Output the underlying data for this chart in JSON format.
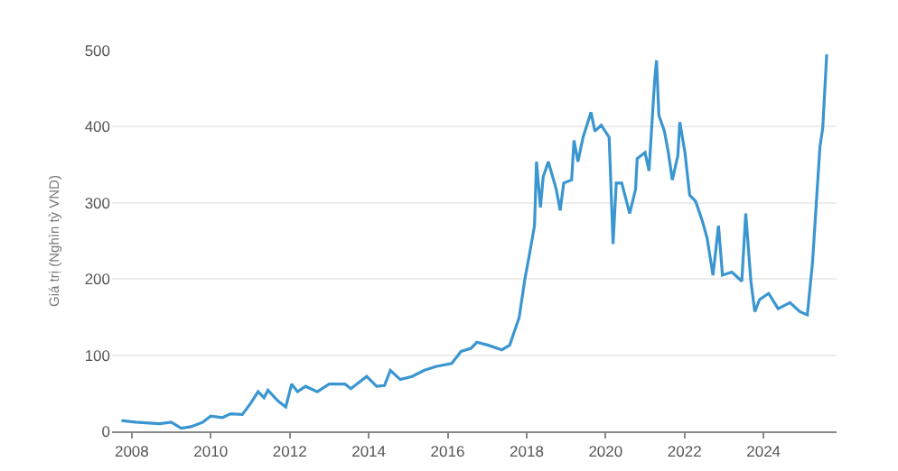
{
  "chart_data": {
    "type": "line",
    "ylabel": "Giá trị (Nghìn tỷ VND)",
    "xlim": [
      2007.5,
      2025.85
    ],
    "ylim": [
      0,
      500
    ],
    "xticks": [
      2008,
      2010,
      2012,
      2014,
      2016,
      2018,
      2020,
      2022,
      2024
    ],
    "yticks": [
      0,
      100,
      200,
      300,
      400,
      500
    ],
    "grid": "y",
    "series": [
      {
        "color": "#3a96d0",
        "x": [
          2007.74,
          2008.1,
          2008.7,
          2009.0,
          2009.25,
          2009.5,
          2009.8,
          2010.0,
          2010.3,
          2010.5,
          2010.8,
          2011.0,
          2011.2,
          2011.35,
          2011.45,
          2011.7,
          2011.9,
          2012.05,
          2012.2,
          2012.4,
          2012.7,
          2013.0,
          2013.4,
          2013.55,
          2013.95,
          2014.2,
          2014.4,
          2014.55,
          2014.8,
          2015.1,
          2015.4,
          2015.7,
          2016.1,
          2016.34,
          2016.59,
          2016.74,
          2017.03,
          2017.37,
          2017.57,
          2017.81,
          2017.96,
          2018.06,
          2018.2,
          2018.25,
          2018.35,
          2018.42,
          2018.55,
          2018.75,
          2018.85,
          2018.94,
          2019.14,
          2019.2,
          2019.3,
          2019.43,
          2019.63,
          2019.73,
          2019.89,
          2020.09,
          2020.19,
          2020.27,
          2020.41,
          2020.61,
          2020.76,
          2020.8,
          2021.0,
          2021.1,
          2021.24,
          2021.29,
          2021.35,
          2021.49,
          2021.59,
          2021.69,
          2021.83,
          2021.88,
          2022.01,
          2022.13,
          2022.28,
          2022.44,
          2022.57,
          2022.72,
          2022.86,
          2022.96,
          2023.2,
          2023.45,
          2023.55,
          2023.68,
          2023.78,
          2023.9,
          2024.13,
          2024.37,
          2024.67,
          2024.92,
          2025.11,
          2025.24,
          2025.37,
          2025.43,
          2025.5,
          2025.6
        ],
        "values": [
          14,
          12,
          10,
          12,
          4,
          6,
          12,
          20,
          18,
          23,
          22,
          36,
          52,
          44,
          54,
          40,
          32,
          62,
          52,
          59,
          52,
          62,
          62,
          56,
          72,
          59,
          60,
          80,
          68,
          72,
          80,
          85,
          89,
          105,
          109,
          117,
          113,
          107,
          113,
          149,
          201,
          229,
          270,
          354,
          294,
          334,
          354,
          318,
          290,
          326,
          330,
          382,
          354,
          386,
          419,
          394,
          402,
          386,
          246,
          326,
          326,
          286,
          318,
          358,
          366,
          342,
          459,
          487,
          415,
          394,
          366,
          330,
          362,
          406,
          366,
          310,
          302,
          278,
          254,
          205,
          270,
          205,
          209,
          197,
          286,
          197,
          157,
          173,
          181,
          161,
          169,
          157,
          153,
          221,
          326,
          374,
          398,
          495
        ]
      }
    ]
  }
}
